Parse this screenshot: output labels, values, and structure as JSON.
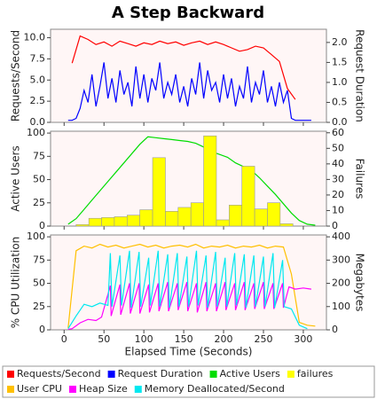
{
  "chart_data": [
    {
      "type": "line",
      "title": "A Step Backward",
      "ylabel": "Requests/Second",
      "y2label": "Request Duration",
      "xlim": [
        -17,
        329
      ],
      "ylim": [
        0,
        11
      ],
      "yticks": [
        {
          "value": 0,
          "label": "0.0"
        },
        {
          "value": 2.5,
          "label": "2.5"
        },
        {
          "value": 5,
          "label": "5.0"
        },
        {
          "value": 7.5,
          "label": "7.5"
        },
        {
          "value": 10,
          "label": "10.0"
        }
      ],
      "y2lim": [
        0,
        2.33
      ],
      "y2ticks": [
        {
          "value": 0,
          "label": "0.0"
        },
        0.5,
        {
          "value": 1,
          "label": "1.0"
        },
        1.5,
        {
          "value": 2,
          "label": "2.0"
        }
      ],
      "series": [
        {
          "name": "Requests/Second",
          "color": "#ff0000",
          "x": [
            10,
            20,
            30,
            40,
            50,
            60,
            70,
            80,
            90,
            100,
            110,
            120,
            130,
            140,
            150,
            160,
            170,
            180,
            190,
            200,
            210,
            220,
            230,
            240,
            250,
            260,
            270,
            280,
            290
          ],
          "values": [
            7.0,
            10.2,
            9.8,
            9.2,
            9.5,
            9.0,
            9.6,
            9.3,
            9.0,
            9.4,
            9.2,
            9.6,
            9.3,
            9.5,
            9.1,
            9.4,
            9.6,
            9.2,
            9.5,
            9.2,
            8.8,
            8.4,
            8.6,
            9.0,
            8.8,
            8.0,
            7.2,
            4.0,
            2.7
          ]
        },
        {
          "name": "Request Duration",
          "color": "#0000ff",
          "axis": "y2",
          "x": [
            5,
            10,
            15,
            20,
            25,
            30,
            35,
            40,
            45,
            50,
            55,
            60,
            65,
            70,
            75,
            80,
            85,
            90,
            95,
            100,
            105,
            110,
            115,
            120,
            125,
            130,
            135,
            140,
            145,
            150,
            155,
            160,
            165,
            170,
            175,
            180,
            185,
            190,
            195,
            200,
            205,
            210,
            215,
            220,
            225,
            230,
            235,
            240,
            245,
            250,
            255,
            260,
            265,
            270,
            275,
            280,
            285,
            290,
            295,
            300,
            305,
            310
          ],
          "values": [
            0.05,
            0.05,
            0.1,
            0.35,
            0.8,
            0.5,
            1.2,
            0.4,
            0.9,
            1.5,
            0.6,
            1.1,
            0.5,
            1.3,
            0.7,
            1.0,
            0.4,
            1.4,
            0.6,
            1.2,
            0.5,
            1.1,
            0.8,
            1.5,
            0.6,
            1.0,
            0.7,
            1.2,
            0.5,
            0.9,
            0.4,
            1.1,
            0.7,
            1.5,
            0.6,
            1.3,
            0.8,
            1.0,
            0.5,
            1.2,
            0.6,
            1.1,
            0.4,
            0.9,
            0.6,
            1.4,
            0.5,
            1.0,
            0.7,
            1.3,
            0.5,
            0.9,
            0.4,
            1.0,
            0.5,
            0.8,
            0.1,
            0.05,
            0.05,
            0.05,
            0.05,
            0.05
          ]
        }
      ]
    },
    {
      "type": "line",
      "ylabel": "Active Users",
      "y2label": "Failures",
      "xlim": [
        -17,
        329
      ],
      "ylim": [
        0,
        102
      ],
      "yticks": [
        0,
        25,
        50,
        75,
        100
      ],
      "y2lim": [
        0,
        61
      ],
      "y2ticks": [
        0,
        10,
        20,
        30,
        40,
        50,
        60
      ],
      "series": [
        {
          "name": "Active Users",
          "color": "#00dd00",
          "x": [
            5,
            15,
            25,
            35,
            45,
            55,
            65,
            75,
            85,
            95,
            105,
            115,
            125,
            135,
            145,
            155,
            165,
            175,
            185,
            195,
            205,
            215,
            225,
            235,
            245,
            255,
            265,
            275,
            285,
            295,
            305,
            315
          ],
          "values": [
            2,
            8,
            18,
            28,
            38,
            48,
            58,
            68,
            78,
            88,
            96,
            95,
            94,
            93,
            92,
            91,
            89,
            85,
            80,
            77,
            74,
            68,
            64,
            60,
            52,
            43,
            34,
            24,
            14,
            6,
            2,
            1
          ]
        },
        {
          "name": "failures",
          "color": "#ffff00",
          "type": "histogram",
          "axis": "y2",
          "bins": [
            15,
            31,
            47,
            63,
            79,
            95,
            111,
            127,
            143,
            159,
            175,
            191,
            207,
            223,
            239,
            255,
            271,
            287
          ],
          "values": [
            1,
            5,
            5.5,
            6,
            7,
            10.5,
            44,
            9.5,
            12,
            15,
            58,
            4,
            13.5,
            38.5,
            11,
            15,
            1.5
          ]
        }
      ]
    },
    {
      "type": "line",
      "ylabel": "% CPU Utilization",
      "y2label": "Megabytes",
      "xlabel": "Elapsed Time (Seconds)",
      "xlim": [
        -17,
        329
      ],
      "xticks": [
        0,
        50,
        100,
        150,
        200,
        250,
        300
      ],
      "ylim": [
        0,
        102
      ],
      "yticks": [
        0,
        25,
        50,
        75,
        100
      ],
      "y2lim": [
        0,
        408
      ],
      "y2ticks": [
        0,
        100,
        200,
        300,
        400
      ],
      "series": [
        {
          "name": "User CPU",
          "color": "#ffc000",
          "x": [
            5,
            15,
            25,
            35,
            45,
            55,
            65,
            75,
            85,
            95,
            105,
            115,
            125,
            135,
            145,
            155,
            165,
            175,
            185,
            195,
            205,
            215,
            225,
            235,
            245,
            255,
            265,
            275,
            285,
            295,
            305,
            315
          ],
          "values": [
            2,
            85,
            90,
            88,
            92,
            89,
            91,
            88,
            90,
            92,
            89,
            91,
            88,
            90,
            91,
            89,
            92,
            88,
            90,
            89,
            91,
            88,
            90,
            89,
            91,
            88,
            90,
            89,
            60,
            8,
            5,
            4
          ]
        },
        {
          "name": "Heap Size",
          "color": "#ff00ff",
          "axis": "y2",
          "x": [
            5,
            10,
            20,
            30,
            40,
            47,
            58,
            59,
            70,
            71,
            82,
            83,
            94,
            95,
            106,
            107,
            118,
            119,
            130,
            131,
            142,
            143,
            154,
            155,
            166,
            167,
            178,
            179,
            190,
            191,
            202,
            203,
            214,
            215,
            226,
            227,
            238,
            239,
            250,
            251,
            262,
            263,
            274,
            275,
            282,
            290,
            300,
            310
          ],
          "values": [
            2,
            5,
            30,
            45,
            40,
            55,
            190,
            60,
            195,
            65,
            200,
            70,
            200,
            70,
            195,
            75,
            200,
            80,
            205,
            80,
            200,
            85,
            205,
            80,
            200,
            75,
            205,
            80,
            200,
            80,
            205,
            85,
            200,
            85,
            205,
            85,
            200,
            90,
            205,
            90,
            200,
            90,
            200,
            95,
            185,
            175,
            180,
            175
          ]
        },
        {
          "name": "Memory Deallocated/Second",
          "color": "#00e8f0",
          "axis": "y2",
          "x": [
            5,
            15,
            25,
            35,
            45,
            55,
            58,
            60,
            70,
            72,
            82,
            84,
            94,
            96,
            106,
            108,
            118,
            120,
            130,
            132,
            142,
            144,
            154,
            156,
            166,
            168,
            178,
            180,
            190,
            192,
            202,
            204,
            214,
            216,
            226,
            228,
            238,
            240,
            250,
            252,
            262,
            264,
            274,
            276,
            285,
            295,
            305
          ],
          "values": [
            5,
            60,
            110,
            100,
            115,
            105,
            330,
            100,
            320,
            105,
            340,
            95,
            335,
            100,
            310,
            105,
            340,
            100,
            325,
            95,
            330,
            100,
            315,
            100,
            340,
            105,
            320,
            95,
            335,
            100,
            310,
            100,
            330,
            105,
            325,
            95,
            320,
            100,
            315,
            100,
            330,
            95,
            300,
            100,
            90,
            20,
            5
          ]
        }
      ]
    }
  ]
}
